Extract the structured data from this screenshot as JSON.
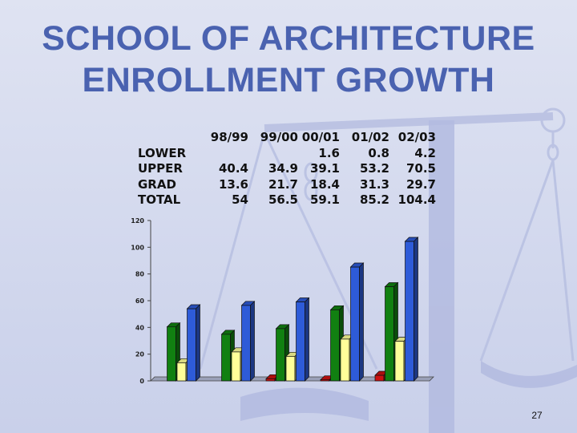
{
  "title_line1": "SCHOOL OF ARCHITECTURE",
  "title_line2": "ENROLLMENT GROWTH",
  "page_number": "27",
  "colors": {
    "title": "#4a62b0",
    "lower": "#cc1111",
    "upper": "#118011",
    "grad": "#ffff99",
    "total": "#2e5bd8"
  },
  "table": {
    "columns": [
      "98/99",
      "99/00",
      "00/01",
      "01/02",
      "02/03"
    ],
    "rows": [
      {
        "label": "LOWER",
        "values": [
          "",
          "",
          "1.6",
          "0.8",
          "4.2"
        ]
      },
      {
        "label": "UPPER",
        "values": [
          "40.4",
          "34.9",
          "39.1",
          "53.2",
          "70.5"
        ]
      },
      {
        "label": "GRAD",
        "values": [
          "13.6",
          "21.7",
          "18.4",
          "31.3",
          "29.7"
        ]
      },
      {
        "label": "TOTAL",
        "values": [
          "54",
          "56.5",
          "59.1",
          "85.2",
          "104.4"
        ]
      }
    ]
  },
  "chart_data": {
    "type": "bar",
    "categories": [
      "98/99",
      "99/00",
      "00/01",
      "01/02",
      "02/03"
    ],
    "series": [
      {
        "name": "LOWER",
        "values": [
          0,
          0,
          1.6,
          0.8,
          4.2
        ]
      },
      {
        "name": "UPPER",
        "values": [
          40.4,
          34.9,
          39.1,
          53.2,
          70.5
        ]
      },
      {
        "name": "GRAD",
        "values": [
          13.6,
          21.7,
          18.4,
          31.3,
          29.7
        ]
      },
      {
        "name": "TOTAL",
        "values": [
          54,
          56.5,
          59.1,
          85.2,
          104.4
        ]
      }
    ],
    "ylim": [
      0,
      120
    ],
    "yticks": [
      "0",
      "20",
      "40",
      "60",
      "80",
      "100",
      "120"
    ],
    "grid": false,
    "style": "3d-bar"
  }
}
